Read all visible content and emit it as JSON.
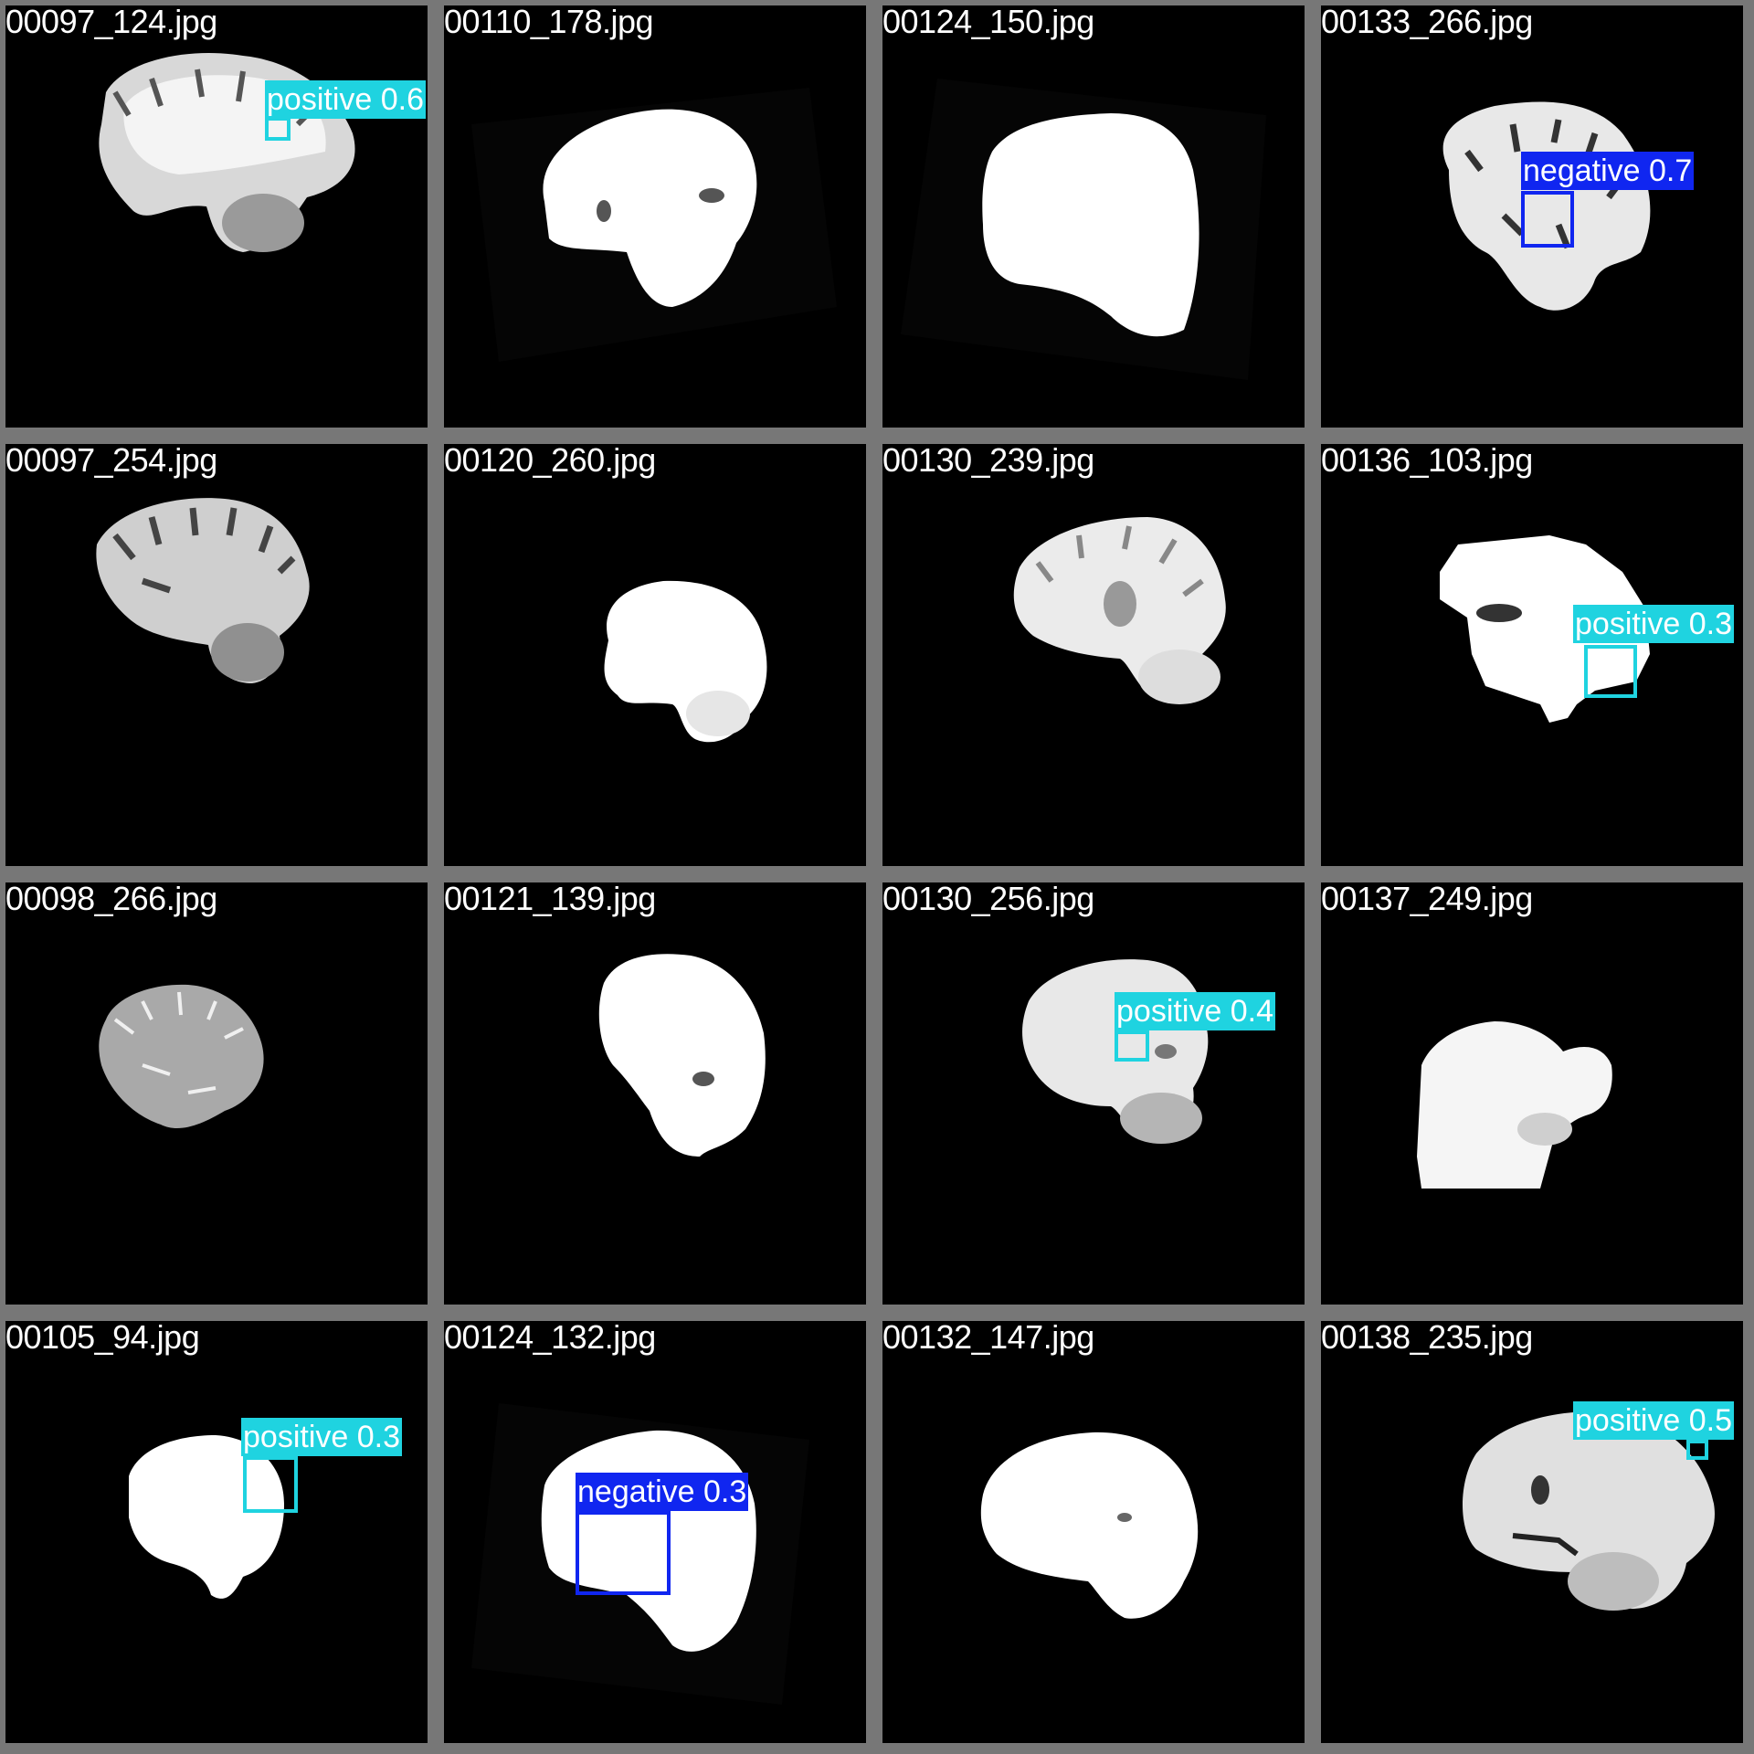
{
  "colors": {
    "frame": "#777777",
    "background": "#000000",
    "label_text": "#ffffff",
    "positive": "#1fd3e0",
    "negative": "#1026f0"
  },
  "tiles": [
    {
      "filename": "00097_124.jpg",
      "detections": [
        {
          "label": "positive",
          "score": "0.6",
          "text": "positive 0.6"
        }
      ]
    },
    {
      "filename": "00110_178.jpg",
      "detections": []
    },
    {
      "filename": "00124_150.jpg",
      "detections": []
    },
    {
      "filename": "00133_266.jpg",
      "detections": [
        {
          "label": "negative",
          "score": "0.7",
          "text": "negative 0.7"
        }
      ]
    },
    {
      "filename": "00097_254.jpg",
      "detections": []
    },
    {
      "filename": "00120_260.jpg",
      "detections": []
    },
    {
      "filename": "00130_239.jpg",
      "detections": []
    },
    {
      "filename": "00136_103.jpg",
      "detections": [
        {
          "label": "positive",
          "score": "0.3",
          "text": "positive 0.3"
        }
      ]
    },
    {
      "filename": "00098_266.jpg",
      "detections": []
    },
    {
      "filename": "00121_139.jpg",
      "detections": []
    },
    {
      "filename": "00130_256.jpg",
      "detections": [
        {
          "label": "positive",
          "score": "0.4",
          "text": "positive 0.4"
        }
      ]
    },
    {
      "filename": "00137_249.jpg",
      "detections": []
    },
    {
      "filename": "00105_94.jpg",
      "detections": [
        {
          "label": "positive",
          "score": "0.3",
          "text": "positive 0.3"
        }
      ]
    },
    {
      "filename": "00124_132.jpg",
      "detections": [
        {
          "label": "negative",
          "score": "0.3",
          "text": "negative 0.3"
        }
      ]
    },
    {
      "filename": "00132_147.jpg",
      "detections": []
    },
    {
      "filename": "00138_235.jpg",
      "detections": [
        {
          "label": "positive",
          "score": "0.5",
          "text": "positive 0.5"
        }
      ]
    }
  ]
}
